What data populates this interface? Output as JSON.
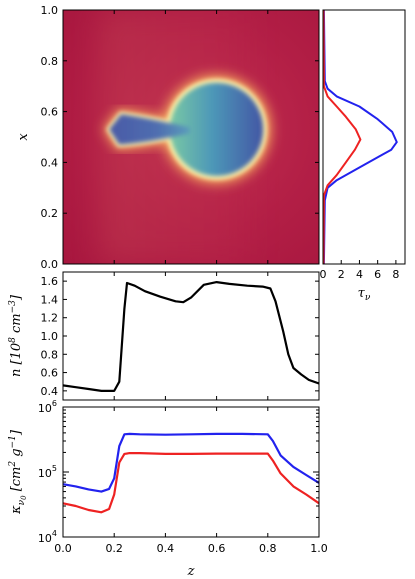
{
  "chart_data": [
    {
      "type": "heatmap",
      "panel": "top-left",
      "ylabel": "x",
      "xlim": [
        0.0,
        1.0
      ],
      "ylim": [
        0.0,
        1.0
      ],
      "yticks": [
        "0.0",
        "0.2",
        "0.4",
        "0.6",
        "0.8",
        "1.0"
      ],
      "xtick_labels_shown": false,
      "colormap": "Spectral (dark red = low, blue = high)",
      "features": {
        "sphere_center": [
          0.6,
          0.53
        ],
        "sphere_radius": 0.19,
        "tail_tip_z": 0.18,
        "tail_width_at_tip": 0.12
      }
    },
    {
      "type": "line",
      "panel": "top-right",
      "xlabel": "τ_ν",
      "xlim": [
        0,
        9
      ],
      "ylim": [
        0.0,
        1.0
      ],
      "xticks": [
        "0",
        "2",
        "4",
        "6",
        "8"
      ],
      "series": [
        {
          "color": "#2222ee",
          "x": [
            0.1,
            0.2,
            0.5,
            1.5,
            4.0,
            6.5,
            7.5,
            8.1,
            7.6,
            6.0,
            4.0,
            1.5,
            0.5,
            0.2,
            0.1
          ],
          "y": [
            0.0,
            0.25,
            0.3,
            0.33,
            0.38,
            0.43,
            0.45,
            0.48,
            0.52,
            0.57,
            0.62,
            0.66,
            0.69,
            0.72,
            1.0
          ]
        },
        {
          "color": "#ee2222",
          "x": [
            0.05,
            0.1,
            0.5,
            1.5,
            2.5,
            3.5,
            4.1,
            3.6,
            2.5,
            1.5,
            0.5,
            0.1,
            0.05
          ],
          "y": [
            0.0,
            0.27,
            0.31,
            0.35,
            0.4,
            0.45,
            0.49,
            0.53,
            0.58,
            0.62,
            0.66,
            0.7,
            1.0
          ]
        }
      ]
    },
    {
      "type": "line",
      "panel": "middle",
      "ylabel": "n [10^8 cm^-3]",
      "ylabel_parts": {
        "var": "n",
        "open": " [10",
        "exp1": "8",
        "unit": " cm",
        "exp2": "−3",
        "close": "]"
      },
      "xlim": [
        0.0,
        1.0
      ],
      "ylim": [
        0.3,
        1.7
      ],
      "yticks": [
        "0.4",
        "0.6",
        "0.8",
        "1.0",
        "1.2",
        "1.4",
        "1.6"
      ],
      "series": [
        {
          "color": "#000000",
          "x": [
            0.0,
            0.05,
            0.1,
            0.15,
            0.2,
            0.22,
            0.24,
            0.25,
            0.28,
            0.32,
            0.38,
            0.44,
            0.47,
            0.5,
            0.55,
            0.6,
            0.65,
            0.72,
            0.78,
            0.81,
            0.83,
            0.86,
            0.88,
            0.9,
            0.93,
            0.96,
            1.0
          ],
          "y": [
            0.46,
            0.44,
            0.42,
            0.4,
            0.4,
            0.5,
            1.3,
            1.58,
            1.55,
            1.49,
            1.43,
            1.38,
            1.37,
            1.42,
            1.56,
            1.59,
            1.57,
            1.55,
            1.54,
            1.52,
            1.38,
            1.05,
            0.8,
            0.65,
            0.58,
            0.52,
            0.48
          ]
        }
      ]
    },
    {
      "type": "line",
      "panel": "bottom",
      "xlabel": "z",
      "ylabel": "κ_ν0 [cm^2 g^-1]",
      "ylabel_parts": {
        "var": "κ",
        "sub": "ν",
        "sub2": "0",
        "open": " [cm",
        "exp1": "2",
        "unit": " g",
        "exp2": "−1",
        "close": "]"
      },
      "yscale": "log",
      "xlim": [
        0.0,
        1.0
      ],
      "ylim": [
        10000,
        1000000
      ],
      "xticks": [
        "0.0",
        "0.2",
        "0.4",
        "0.6",
        "0.8",
        "1.0"
      ],
      "yticks": [
        {
          "base": "10",
          "exp": "4",
          "value": 10000
        },
        {
          "base": "10",
          "exp": "5",
          "value": 100000
        },
        {
          "base": "10",
          "exp": "6",
          "value": 1000000
        }
      ],
      "series": [
        {
          "color": "#2222ee",
          "x": [
            0.0,
            0.05,
            0.1,
            0.15,
            0.18,
            0.2,
            0.22,
            0.24,
            0.26,
            0.3,
            0.4,
            0.5,
            0.6,
            0.7,
            0.8,
            0.82,
            0.85,
            0.9,
            0.95,
            1.0
          ],
          "y": [
            65000,
            60000,
            54000,
            50000,
            55000,
            80000,
            250000,
            380000,
            385000,
            380000,
            375000,
            380000,
            385000,
            385000,
            380000,
            300000,
            180000,
            120000,
            90000,
            68000
          ]
        },
        {
          "color": "#ee2222",
          "x": [
            0.0,
            0.05,
            0.1,
            0.15,
            0.18,
            0.2,
            0.22,
            0.24,
            0.26,
            0.3,
            0.4,
            0.5,
            0.6,
            0.7,
            0.8,
            0.82,
            0.85,
            0.9,
            0.95,
            1.0
          ],
          "y": [
            33000,
            30000,
            26000,
            24000,
            27000,
            45000,
            140000,
            190000,
            195000,
            195000,
            190000,
            190000,
            192000,
            192000,
            192000,
            150000,
            95000,
            60000,
            45000,
            33000
          ]
        }
      ]
    }
  ]
}
